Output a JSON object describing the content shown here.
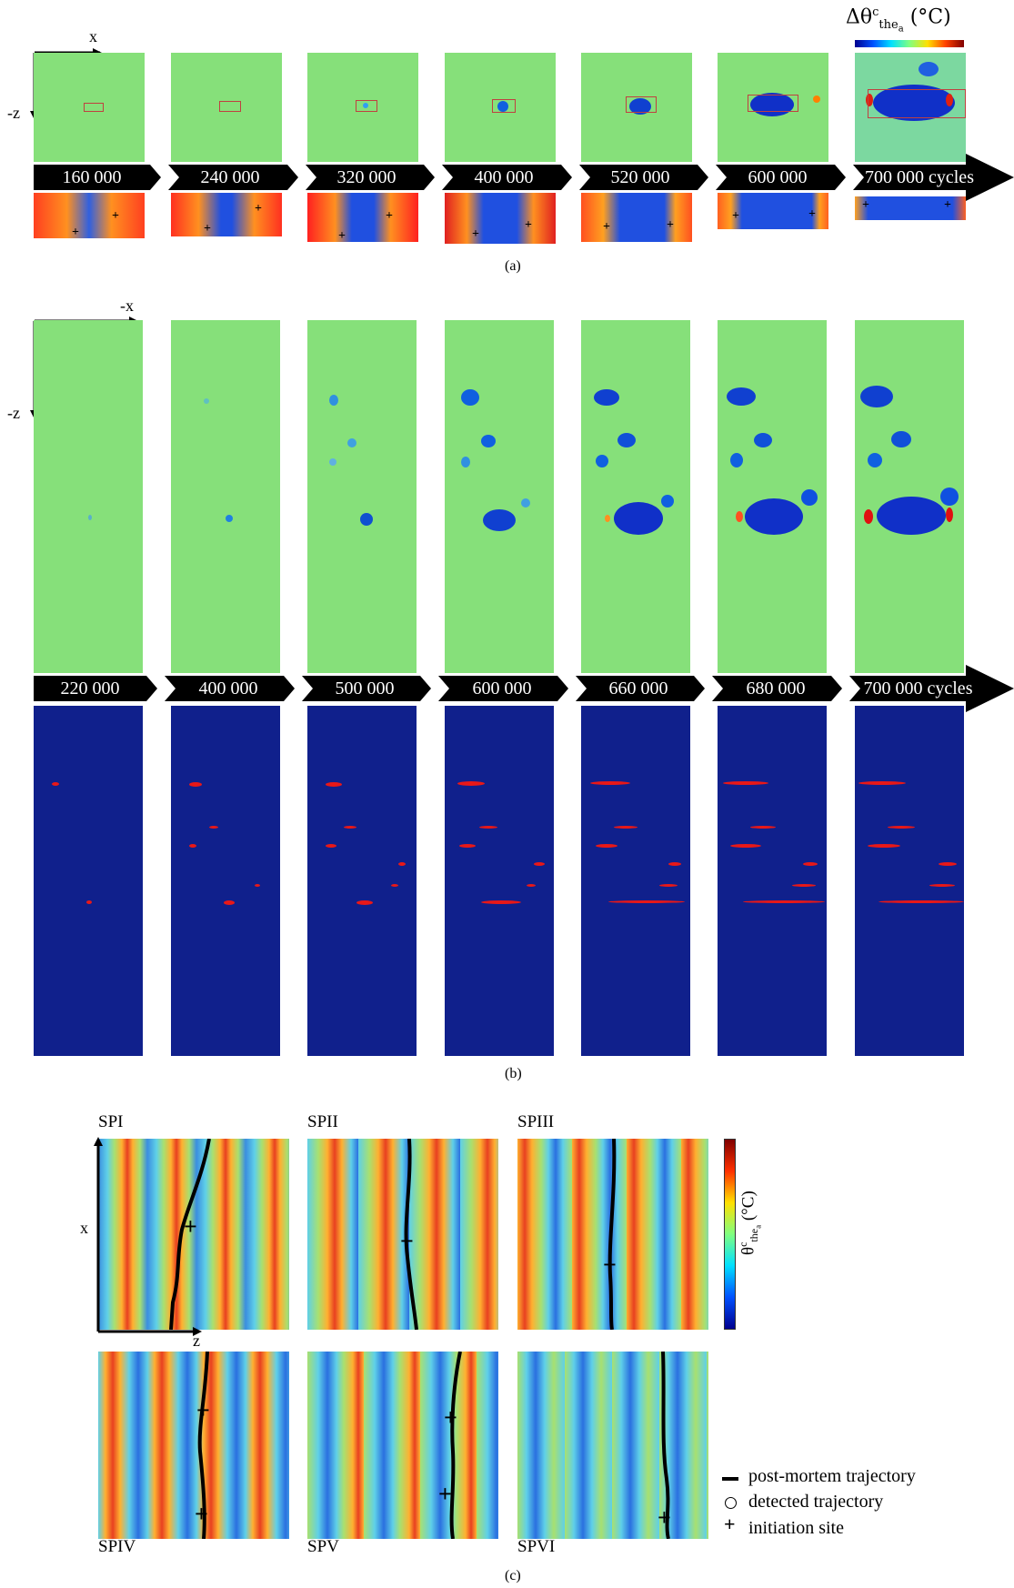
{
  "colorbar_a": {
    "label": "Δθ",
    "sup": "c",
    "sub": "the",
    "subsub": "a",
    "unit": "(°C)"
  },
  "section_a": {
    "axis_x": "x",
    "axis_z": "-z",
    "timeline": [
      "160 000",
      "240 000",
      "320 000",
      "400 000",
      "520 000",
      "600 000",
      "700 000 cycles"
    ],
    "caption": "(a)"
  },
  "section_b": {
    "axis_x": "-x",
    "axis_z": "-z",
    "timeline": [
      "220 000",
      "400 000",
      "500 000",
      "600 000",
      "660 000",
      "680 000",
      "700 000 cycles"
    ],
    "caption": "(b)"
  },
  "section_c": {
    "specimens": [
      "SPI",
      "SPII",
      "SPIII",
      "SPIV",
      "SPV",
      "SPVI"
    ],
    "axis_x": "x",
    "axis_z": "z",
    "colorbar_label": "θ",
    "colorbar_sup": "c",
    "colorbar_sub": "the",
    "colorbar_subsub": "a",
    "colorbar_unit": "(°C)",
    "legend": [
      "post-mortem trajectory",
      "detected trajectory",
      "initiation site"
    ],
    "caption": "(c)"
  },
  "colors": {
    "green_field": "#84df7c",
    "dark_blue": "#10208c",
    "red": "#e81818",
    "timeline_bg": "#000000"
  }
}
